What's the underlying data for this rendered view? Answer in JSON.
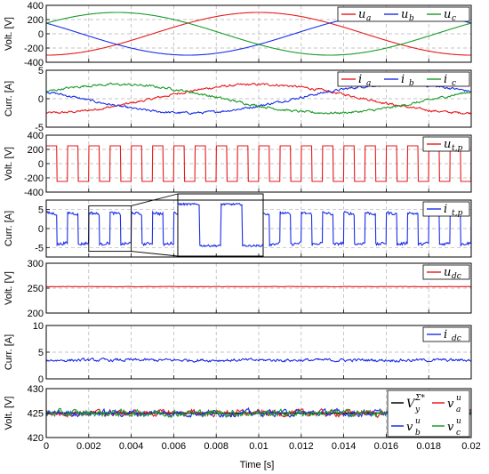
{
  "colors": {
    "red": "#e8191b",
    "blue": "#1a2ee8",
    "green": "#1a9a2a",
    "black": "#000000",
    "grid": "#b0b0b0"
  },
  "chart_data": {
    "type": "line",
    "xlabel": "Time [s]",
    "xlim": [
      0,
      0.02
    ],
    "xticks": [
      "0",
      "0.002",
      "0.004",
      "0.006",
      "0.008",
      "0.01",
      "0.012",
      "0.014",
      "0.016",
      "0.018",
      "0.02"
    ],
    "panels": [
      {
        "id": "grid-voltage",
        "ylabel": "Volt. [V]",
        "ylim": [
          -400,
          400
        ],
        "yticks": [
          "-400",
          "-200",
          "0",
          "200",
          "400"
        ],
        "legend": "top-right",
        "series": [
          {
            "name": "u",
            "sub": "a",
            "color": "red",
            "kind": "sine",
            "amplitude": 300,
            "frequency_hz": 50,
            "phase_deg": -90,
            "noise": 0
          },
          {
            "name": "u",
            "sub": "b",
            "color": "blue",
            "kind": "sine",
            "amplitude": 300,
            "frequency_hz": 50,
            "phase_deg": 150,
            "noise": 0
          },
          {
            "name": "u",
            "sub": "c",
            "color": "green",
            "kind": "sine",
            "amplitude": 300,
            "frequency_hz": 50,
            "phase_deg": 30,
            "noise": 0
          }
        ]
      },
      {
        "id": "grid-current",
        "ylabel": "Curr. [A]",
        "ylim": [
          -5,
          5
        ],
        "yticks": [
          "-5",
          "0",
          "5"
        ],
        "legend": "top-right",
        "series": [
          {
            "name": "i",
            "sub": "a",
            "color": "red",
            "kind": "sine",
            "amplitude": 2.5,
            "frequency_hz": 50,
            "phase_deg": -90,
            "noise": 0.25
          },
          {
            "name": "i",
            "sub": "b",
            "color": "blue",
            "kind": "sine",
            "amplitude": 2.5,
            "frequency_hz": 50,
            "phase_deg": 150,
            "noise": 0.25
          },
          {
            "name": "i",
            "sub": "c",
            "color": "green",
            "kind": "sine",
            "amplitude": 2.5,
            "frequency_hz": 50,
            "phase_deg": 30,
            "noise": 0.25
          }
        ]
      },
      {
        "id": "transformer-voltage",
        "ylabel": "Volt. [V]",
        "ylim": [
          -400,
          400
        ],
        "yticks": [
          "-400",
          "-200",
          "0",
          "200",
          "400"
        ],
        "legend": "top-right",
        "series": [
          {
            "name": "u",
            "sub": "t,p",
            "color": "red",
            "kind": "square",
            "amplitude": 250,
            "frequency_hz": 1000,
            "noise": 0
          }
        ]
      },
      {
        "id": "transformer-current",
        "ylabel": "Curr. [A]",
        "ylim": [
          -7.5,
          7.5
        ],
        "yticks": [
          "-5",
          "0",
          "5"
        ],
        "legend": "top-right",
        "zoom_inset": {
          "x_range": [
            0.002,
            0.004
          ],
          "y_range": [
            -6,
            6
          ]
        },
        "series": [
          {
            "name": "i",
            "sub": "t,p",
            "color": "blue",
            "kind": "square",
            "amplitude": 4,
            "frequency_hz": 1000,
            "noise": 0.35
          }
        ]
      },
      {
        "id": "dc-voltage",
        "ylabel": "Volt. [V]",
        "ylim": [
          200,
          300
        ],
        "yticks": [
          "200",
          "250",
          "300"
        ],
        "legend": "top-right",
        "series": [
          {
            "name": "u",
            "sub": "dc",
            "color": "red",
            "kind": "const",
            "value": 253,
            "noise": 0.4
          }
        ]
      },
      {
        "id": "dc-current",
        "ylabel": "Curr. [A]",
        "ylim": [
          0,
          10
        ],
        "yticks": [
          "0",
          "5",
          "10"
        ],
        "legend": "top-right",
        "series": [
          {
            "name": "i",
            "sub": "dc",
            "color": "blue",
            "kind": "const",
            "value": 3.5,
            "noise": 0.35
          }
        ]
      },
      {
        "id": "capacitor-voltage",
        "ylabel": "Volt. [V]",
        "ylim": [
          420,
          430
        ],
        "yticks": [
          "420",
          "425",
          "430"
        ],
        "legend": "top-right",
        "series": [
          {
            "name": "V",
            "sub": "y",
            "sup": "Σ*",
            "color": "black",
            "kind": "const",
            "value": 425,
            "noise": 0
          },
          {
            "name": "v",
            "sub": "a",
            "sup": "u",
            "color": "red",
            "kind": "const",
            "value": 425,
            "noise": 0.8
          },
          {
            "name": "v",
            "sub": "b",
            "sup": "u",
            "color": "blue",
            "kind": "const",
            "value": 425,
            "noise": 0.8
          },
          {
            "name": "v",
            "sub": "c",
            "sup": "u",
            "color": "green",
            "kind": "const",
            "value": 425,
            "noise": 0.8
          }
        ]
      }
    ]
  }
}
